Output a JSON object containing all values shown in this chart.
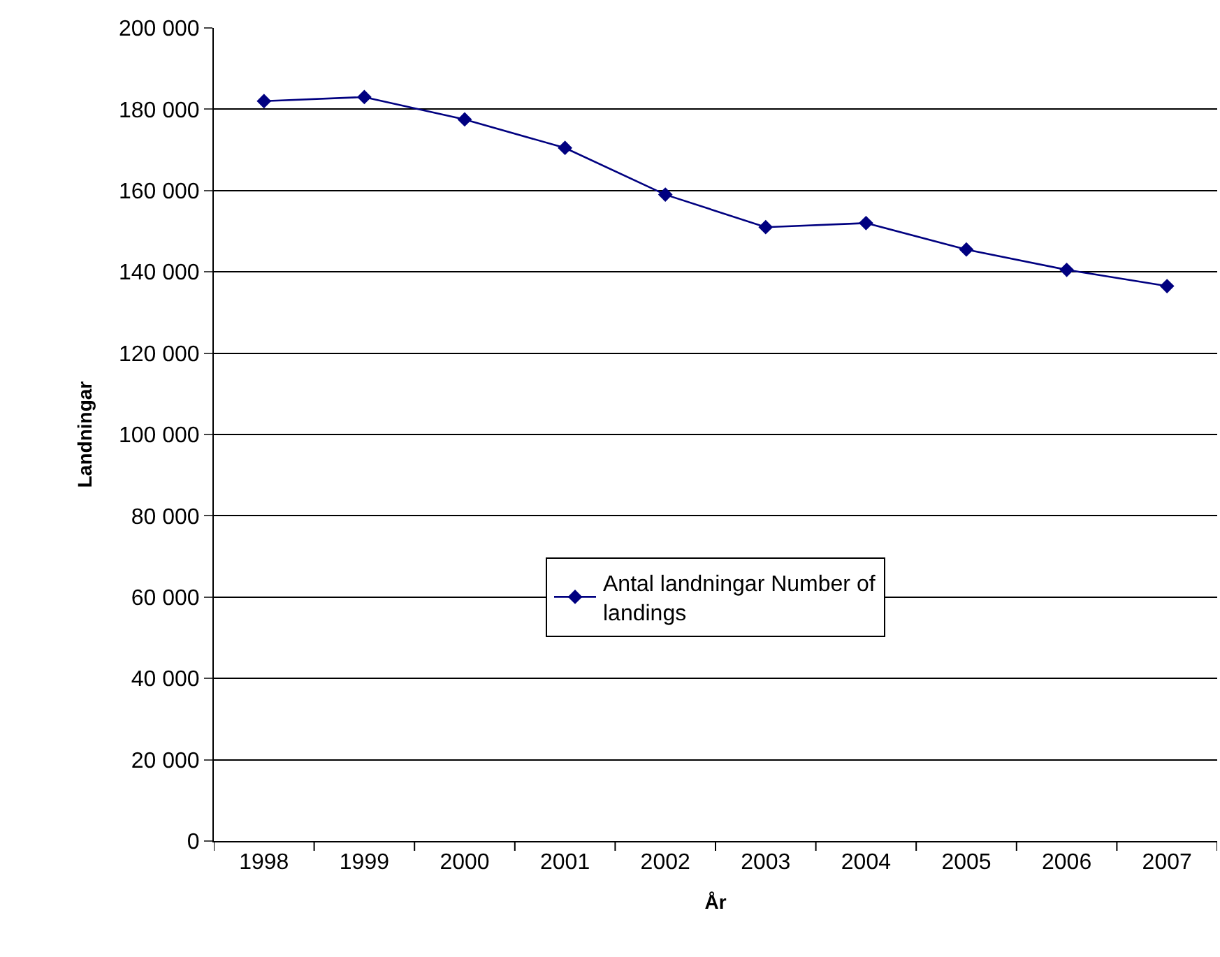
{
  "chart_data": {
    "type": "line",
    "xlabel": "År",
    "ylabel": "Landningar",
    "categories": [
      "1998",
      "1999",
      "2000",
      "2001",
      "2002",
      "2003",
      "2004",
      "2005",
      "2006",
      "2007"
    ],
    "series": [
      {
        "name": "Antal landningar Number of landings",
        "color": "#000080",
        "values": [
          182000,
          183000,
          177500,
          170500,
          159000,
          151000,
          152000,
          145500,
          140500,
          136500
        ]
      }
    ],
    "ylim": [
      0,
      200000
    ],
    "yticks": [
      {
        "value": 0,
        "label": "0"
      },
      {
        "value": 20000,
        "label": "20 000"
      },
      {
        "value": 40000,
        "label": "40 000"
      },
      {
        "value": 60000,
        "label": "60 000"
      },
      {
        "value": 80000,
        "label": "80 000"
      },
      {
        "value": 100000,
        "label": "100 000"
      },
      {
        "value": 120000,
        "label": "120 000"
      },
      {
        "value": 140000,
        "label": "140 000"
      },
      {
        "value": 160000,
        "label": "160 000"
      },
      {
        "value": 180000,
        "label": "180 000"
      },
      {
        "value": 200000,
        "label": "200 000"
      }
    ],
    "grid": "y",
    "legend": "center",
    "marker": "diamond",
    "line_style": "solid"
  }
}
